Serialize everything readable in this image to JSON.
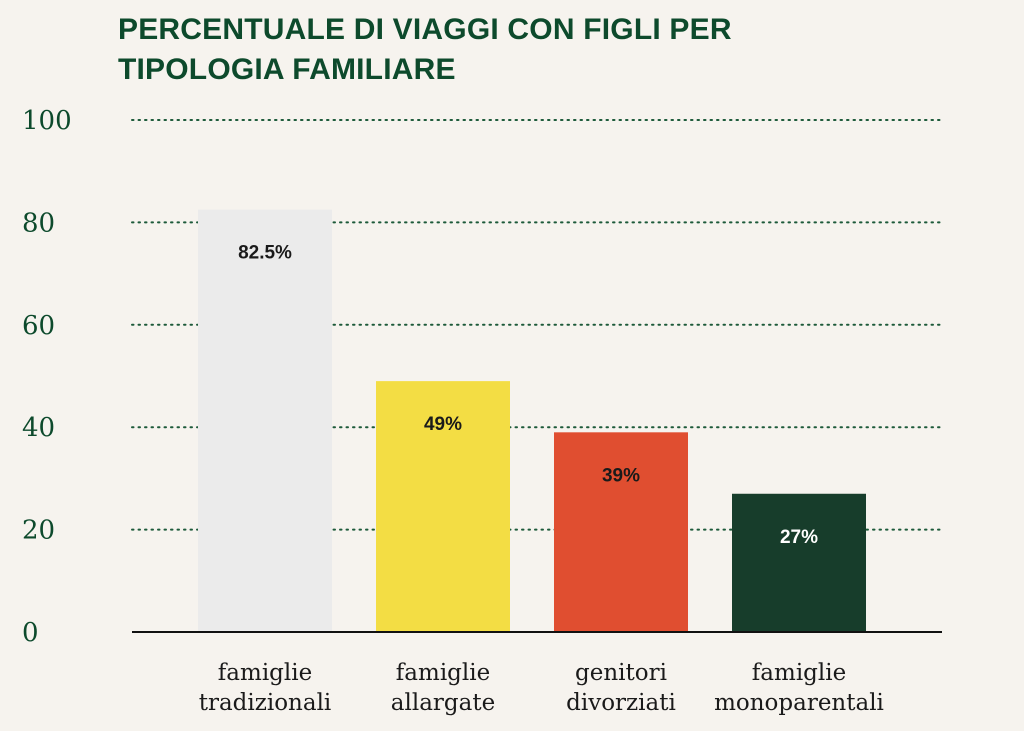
{
  "chart_data": {
    "type": "bar",
    "title": "PERCENTUALE DI VIAGGI CON FIGLI PER TIPOLOGIA FAMILIARE",
    "categories": [
      [
        "famiglie",
        "tradizionali"
      ],
      [
        "famiglie",
        "allargate"
      ],
      [
        "genitori",
        "divorziati"
      ],
      [
        "famiglie",
        "monoparentali"
      ]
    ],
    "values": [
      82.5,
      49,
      39,
      27
    ],
    "data_labels": [
      "82.5%",
      "49%",
      "39%",
      "27%"
    ],
    "bar_colors": [
      "#ebebeb",
      "#f3dd44",
      "#e04e30",
      "#173d2b"
    ],
    "label_colors": [
      "#1a1a1a",
      "#1a1a1a",
      "#1a1a1a",
      "#ffffff"
    ],
    "yticks": [
      0,
      20,
      40,
      60,
      80,
      100
    ],
    "ylim": [
      0,
      100
    ],
    "xlabel": "",
    "ylabel": "",
    "grid": "dotted horizontal",
    "legend": "none"
  },
  "colors": {
    "title": "#0d4a2c",
    "ytick": "#0d4a2c",
    "grid": "#1d5a3a",
    "axis": "#111111",
    "background": "#f6f3ee"
  }
}
